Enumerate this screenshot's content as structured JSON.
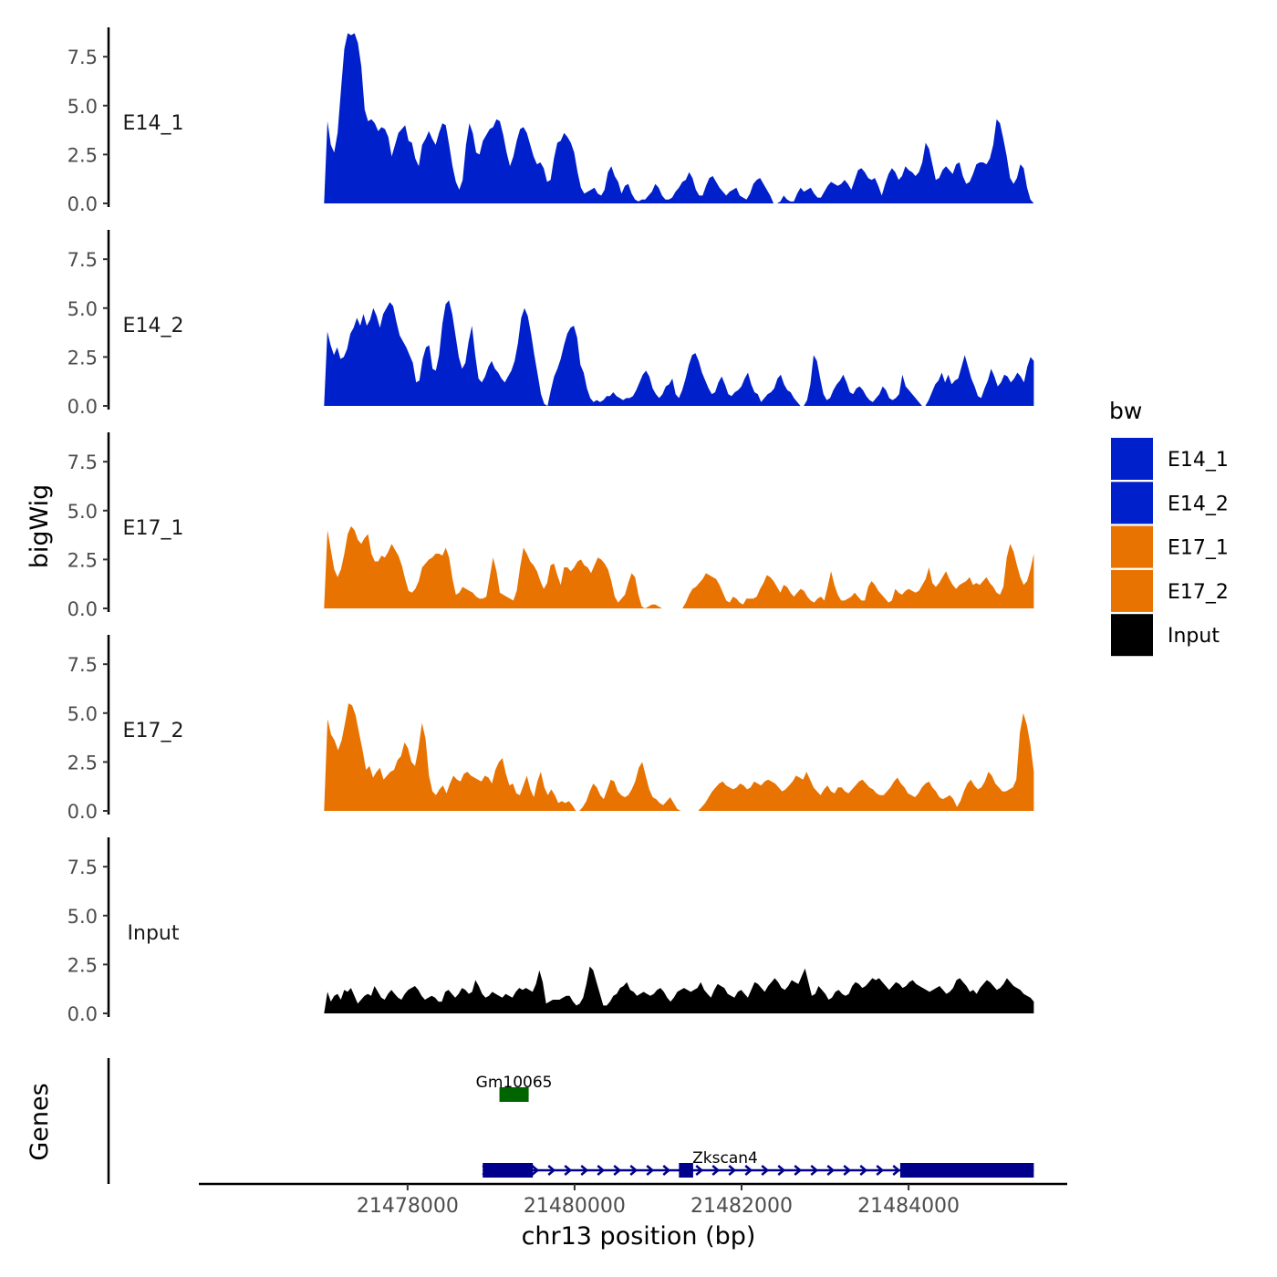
{
  "chart_data": {
    "type": "area",
    "y_axis_title": "bigWig",
    "genes_axis_title": "Genes",
    "x_axis_title": "chr13 position (bp)",
    "x_ticks": [
      21478000,
      21480000,
      21482000,
      21484000
    ],
    "x_range": [
      21475500,
      21485900
    ],
    "data_x_range": [
      21477000,
      21485500
    ],
    "y_range": [
      0,
      9
    ],
    "y_ticks": [
      "0.0",
      "2.5",
      "5.0",
      "7.5"
    ],
    "y_tick_values": [
      0,
      2.5,
      5,
      7.5
    ],
    "tracks": [
      {
        "name": "E14_1",
        "color": "#0020CC",
        "values": [
          0.0,
          4.2,
          3.0,
          2.6,
          3.6,
          5.8,
          7.9,
          8.7,
          8.6,
          8.7,
          8.2,
          7.0,
          4.8,
          4.2,
          4.3,
          4.1,
          3.7,
          3.9,
          3.8,
          3.4,
          2.4,
          3.0,
          3.6,
          3.8,
          4.0,
          3.2,
          3.1,
          2.3,
          1.9,
          3.0,
          3.3,
          3.7,
          3.3,
          3.0,
          3.6,
          4.1,
          4.0,
          3.0,
          1.9,
          1.1,
          0.7,
          1.2,
          3.0,
          4.1,
          3.6,
          2.6,
          2.5,
          3.2,
          3.5,
          3.8,
          3.9,
          4.3,
          4.2,
          3.5,
          2.6,
          1.9,
          2.4,
          3.2,
          3.8,
          3.9,
          3.6,
          3.0,
          2.4,
          2.0,
          2.1,
          1.8,
          1.1,
          1.2,
          2.3,
          3.1,
          3.2,
          3.6,
          3.4,
          3.1,
          2.6,
          1.6,
          0.8,
          0.5,
          0.6,
          0.7,
          0.8,
          0.5,
          0.4,
          0.7,
          1.6,
          1.9,
          1.4,
          1.1,
          0.5,
          0.9,
          1.0,
          0.5,
          0.2,
          0.1,
          0.2,
          0.2,
          0.4,
          0.6,
          1.0,
          0.8,
          0.4,
          0.2,
          0.2,
          0.3,
          0.6,
          0.8,
          1.1,
          1.2,
          1.6,
          1.3,
          0.7,
          0.4,
          0.4,
          0.9,
          1.3,
          1.4,
          1.1,
          0.8,
          0.6,
          0.4,
          0.6,
          0.7,
          0.8,
          0.4,
          0.3,
          0.2,
          0.5,
          1.0,
          1.2,
          1.3,
          1.0,
          0.7,
          0.4,
          0.0,
          0.0,
          0.1,
          0.4,
          0.2,
          0.1,
          0.1,
          0.5,
          0.8,
          0.6,
          0.7,
          0.8,
          0.5,
          0.3,
          0.3,
          0.6,
          0.9,
          1.1,
          1.0,
          0.9,
          1.0,
          1.2,
          1.0,
          0.7,
          1.2,
          1.7,
          1.8,
          1.6,
          1.3,
          1.2,
          1.3,
          0.9,
          0.4,
          1.0,
          1.5,
          1.8,
          1.6,
          1.2,
          1.4,
          1.9,
          1.7,
          1.6,
          1.4,
          1.6,
          2.1,
          3.1,
          2.8,
          2.0,
          1.2,
          1.3,
          1.7,
          1.9,
          1.7,
          1.5,
          2.0,
          2.1,
          1.4,
          1.0,
          1.1,
          1.5,
          2.0,
          2.1,
          2.1,
          2.0,
          2.3,
          3.0,
          4.3,
          4.1,
          3.3,
          2.4,
          1.3,
          1.0,
          1.3,
          2.0,
          1.8,
          0.8,
          0.2,
          0.0
        ]
      },
      {
        "name": "E14_2",
        "color": "#0020CC",
        "values": [
          0.0,
          3.8,
          3.1,
          2.6,
          3.0,
          2.4,
          2.5,
          2.9,
          3.7,
          4.0,
          4.5,
          4.1,
          4.7,
          4.1,
          4.4,
          5.0,
          4.6,
          4.0,
          4.7,
          5.0,
          5.3,
          5.1,
          4.3,
          3.6,
          3.3,
          3.0,
          2.6,
          2.2,
          1.2,
          1.3,
          2.4,
          3.0,
          3.1,
          1.9,
          1.8,
          2.6,
          4.2,
          5.2,
          5.4,
          4.7,
          3.6,
          2.5,
          1.9,
          2.2,
          3.3,
          4.1,
          2.6,
          1.4,
          1.2,
          1.5,
          2.0,
          2.3,
          1.9,
          1.7,
          1.4,
          1.2,
          1.5,
          1.8,
          2.3,
          3.2,
          4.5,
          5.0,
          4.6,
          3.7,
          2.6,
          1.6,
          0.6,
          0.1,
          0.0,
          0.8,
          1.5,
          1.9,
          2.4,
          3.1,
          3.7,
          4.0,
          4.1,
          3.5,
          2.1,
          1.7,
          0.9,
          0.4,
          0.2,
          0.3,
          0.2,
          0.3,
          0.5,
          0.5,
          0.7,
          0.5,
          0.4,
          0.3,
          0.4,
          0.4,
          0.5,
          0.8,
          1.2,
          1.6,
          1.8,
          1.5,
          0.9,
          0.6,
          0.4,
          0.6,
          1.0,
          1.1,
          1.4,
          0.6,
          0.4,
          0.8,
          1.4,
          2.1,
          2.6,
          2.7,
          2.3,
          1.7,
          1.3,
          0.9,
          0.6,
          0.7,
          1.2,
          1.5,
          1.1,
          0.6,
          0.5,
          0.7,
          0.8,
          1.0,
          1.4,
          1.7,
          1.1,
          0.7,
          0.6,
          0.2,
          0.4,
          0.6,
          0.7,
          0.9,
          1.4,
          1.6,
          1.1,
          0.8,
          0.7,
          0.4,
          0.2,
          0.0,
          0.0,
          0.3,
          1.1,
          2.6,
          2.3,
          1.4,
          0.6,
          0.3,
          0.4,
          0.8,
          1.1,
          1.3,
          1.6,
          1.2,
          0.7,
          0.6,
          0.9,
          1.0,
          0.8,
          0.5,
          0.3,
          0.2,
          0.4,
          0.6,
          1.0,
          0.8,
          0.4,
          0.3,
          0.4,
          0.6,
          1.6,
          1.0,
          0.8,
          0.6,
          0.4,
          0.2,
          0.0,
          0.0,
          0.3,
          0.7,
          1.1,
          1.3,
          1.7,
          1.2,
          1.6,
          1.1,
          1.3,
          1.4,
          2.0,
          2.6,
          2.0,
          1.4,
          1.0,
          0.5,
          0.4,
          0.9,
          1.3,
          1.9,
          1.5,
          1.0,
          1.2,
          1.6,
          1.5,
          1.2,
          1.4,
          1.7,
          1.5,
          1.2,
          2.0,
          2.5,
          2.3
        ]
      },
      {
        "name": "E17_1",
        "color": "#E87300",
        "values": [
          0.0,
          4.0,
          3.0,
          2.0,
          1.6,
          2.0,
          2.8,
          3.8,
          4.2,
          4.0,
          3.5,
          3.3,
          3.6,
          3.8,
          2.8,
          2.4,
          2.4,
          2.7,
          2.6,
          2.9,
          3.3,
          3.0,
          2.7,
          2.2,
          1.5,
          0.9,
          0.8,
          1.0,
          1.4,
          2.1,
          2.3,
          2.5,
          2.6,
          2.8,
          2.8,
          2.7,
          3.1,
          2.6,
          1.5,
          0.7,
          0.8,
          1.1,
          1.0,
          0.9,
          0.8,
          0.6,
          0.5,
          0.5,
          0.6,
          1.6,
          2.6,
          1.9,
          0.8,
          0.7,
          0.6,
          0.5,
          0.4,
          0.9,
          2.1,
          3.1,
          2.8,
          2.4,
          2.2,
          1.9,
          1.4,
          1.0,
          1.3,
          2.2,
          2.3,
          1.7,
          1.2,
          2.1,
          2.1,
          1.9,
          2.1,
          2.4,
          2.5,
          2.2,
          2.1,
          1.8,
          2.2,
          2.6,
          2.5,
          2.3,
          2.0,
          1.4,
          0.6,
          0.3,
          0.5,
          0.7,
          1.3,
          1.8,
          1.6,
          0.7,
          0.1,
          0.0,
          0.1,
          0.2,
          0.2,
          0.1,
          0.0,
          0.0,
          0.0,
          0.0,
          0.0,
          0.0,
          0.0,
          0.3,
          0.7,
          1.0,
          1.1,
          1.3,
          1.5,
          1.8,
          1.7,
          1.6,
          1.5,
          1.2,
          0.8,
          0.4,
          0.3,
          0.6,
          0.5,
          0.3,
          0.2,
          0.5,
          0.5,
          0.5,
          0.6,
          1.0,
          1.3,
          1.7,
          1.6,
          1.4,
          1.1,
          0.8,
          1.2,
          1.1,
          0.8,
          0.6,
          0.8,
          1.0,
          0.9,
          0.6,
          0.4,
          0.3,
          0.5,
          0.6,
          0.4,
          1.1,
          1.9,
          1.2,
          0.7,
          0.4,
          0.4,
          0.5,
          0.6,
          0.8,
          0.6,
          0.4,
          0.4,
          1.1,
          1.4,
          1.2,
          0.9,
          0.7,
          0.5,
          0.3,
          0.4,
          1.0,
          0.8,
          0.7,
          0.9,
          1.0,
          0.9,
          0.8,
          0.9,
          1.2,
          1.5,
          2.1,
          1.3,
          1.1,
          1.3,
          1.6,
          1.9,
          1.5,
          1.2,
          1.0,
          1.2,
          1.3,
          1.4,
          1.6,
          1.2,
          1.3,
          1.2,
          1.4,
          1.6,
          1.3,
          1.1,
          0.8,
          0.7,
          1.1,
          2.6,
          3.3,
          2.9,
          2.2,
          1.6,
          1.2,
          1.4,
          2.0,
          2.8
        ]
      },
      {
        "name": "E17_2",
        "color": "#E87300",
        "values": [
          0.0,
          4.7,
          3.9,
          3.6,
          3.1,
          3.6,
          4.5,
          5.5,
          5.4,
          4.9,
          4.0,
          3.1,
          2.1,
          2.3,
          1.7,
          2.0,
          2.2,
          1.6,
          1.8,
          2.0,
          2.1,
          2.6,
          2.8,
          3.5,
          3.2,
          2.5,
          2.3,
          3.2,
          4.5,
          3.7,
          1.8,
          1.0,
          0.8,
          1.1,
          1.3,
          0.9,
          1.4,
          1.8,
          1.6,
          1.5,
          1.9,
          2.0,
          1.8,
          1.7,
          1.6,
          1.5,
          1.8,
          1.7,
          1.4,
          2.1,
          2.5,
          2.7,
          1.9,
          1.3,
          1.4,
          0.9,
          0.8,
          1.3,
          1.8,
          1.1,
          0.7,
          1.5,
          2.0,
          1.2,
          0.8,
          1.1,
          0.8,
          0.4,
          0.5,
          0.4,
          0.5,
          0.3,
          0.0,
          0.0,
          0.2,
          0.5,
          1.0,
          1.4,
          1.2,
          0.8,
          0.6,
          1.1,
          1.6,
          1.5,
          1.0,
          0.8,
          0.7,
          0.8,
          1.1,
          1.5,
          2.2,
          2.5,
          1.8,
          1.1,
          0.7,
          0.6,
          0.4,
          0.3,
          0.5,
          0.7,
          0.4,
          0.1,
          0.0,
          0.0,
          0.0,
          0.0,
          0.0,
          0.0,
          0.2,
          0.4,
          0.7,
          1.0,
          1.2,
          1.4,
          1.5,
          1.3,
          1.2,
          1.1,
          1.2,
          1.4,
          1.3,
          1.1,
          1.2,
          1.5,
          1.4,
          1.3,
          1.5,
          1.6,
          1.5,
          1.4,
          1.2,
          1.0,
          1.1,
          1.3,
          1.5,
          1.8,
          1.7,
          1.6,
          2.0,
          1.6,
          1.2,
          1.0,
          0.8,
          1.1,
          1.3,
          1.0,
          0.9,
          1.2,
          1.2,
          1.0,
          0.9,
          1.1,
          1.3,
          1.5,
          1.6,
          1.4,
          1.2,
          1.1,
          0.9,
          0.8,
          0.8,
          1.0,
          1.2,
          1.5,
          1.7,
          1.4,
          1.2,
          0.9,
          0.8,
          0.7,
          0.9,
          1.2,
          1.4,
          1.5,
          1.2,
          1.0,
          0.7,
          0.6,
          0.7,
          0.8,
          0.6,
          0.2,
          0.5,
          1.0,
          1.4,
          1.6,
          1.3,
          1.1,
          1.2,
          1.5,
          2.0,
          1.8,
          1.4,
          1.2,
          1.0,
          1.0,
          1.1,
          1.2,
          1.6,
          4.0,
          5.0,
          4.4,
          3.4,
          2.0
        ]
      },
      {
        "name": "Input",
        "color": "#000000",
        "values": [
          0.0,
          1.1,
          0.6,
          0.9,
          1.0,
          0.7,
          1.2,
          1.1,
          1.3,
          0.9,
          0.5,
          0.7,
          0.9,
          1.0,
          0.9,
          1.4,
          1.1,
          0.8,
          0.7,
          1.0,
          1.2,
          1.0,
          0.8,
          0.7,
          1.0,
          1.2,
          1.3,
          1.4,
          1.2,
          0.9,
          0.7,
          0.8,
          0.9,
          0.8,
          0.6,
          0.6,
          1.1,
          1.2,
          1.0,
          0.8,
          1.0,
          1.3,
          1.2,
          1.0,
          1.1,
          1.7,
          1.4,
          1.0,
          0.8,
          0.9,
          1.1,
          1.0,
          0.9,
          0.8,
          1.0,
          0.9,
          0.8,
          1.1,
          1.3,
          1.2,
          1.3,
          1.2,
          1.1,
          1.5,
          2.2,
          1.6,
          0.5,
          0.6,
          0.7,
          0.7,
          0.7,
          0.8,
          0.9,
          0.9,
          0.6,
          0.4,
          0.5,
          0.8,
          1.5,
          2.4,
          2.2,
          1.6,
          1.0,
          0.4,
          0.4,
          0.6,
          0.9,
          1.0,
          1.3,
          1.4,
          1.6,
          1.2,
          1.1,
          0.9,
          1.0,
          1.1,
          1.0,
          0.9,
          1.0,
          1.2,
          1.3,
          1.1,
          0.8,
          0.6,
          0.8,
          1.1,
          1.2,
          1.3,
          1.2,
          1.1,
          1.2,
          1.3,
          1.6,
          1.2,
          1.0,
          0.8,
          1.2,
          1.5,
          1.4,
          1.3,
          1.0,
          0.9,
          0.8,
          1.1,
          1.2,
          1.0,
          0.8,
          1.2,
          1.6,
          1.5,
          1.3,
          1.1,
          1.4,
          1.6,
          1.8,
          1.6,
          1.3,
          1.2,
          1.4,
          1.7,
          1.6,
          1.5,
          1.9,
          2.3,
          1.6,
          0.9,
          1.0,
          1.4,
          1.2,
          1.0,
          0.7,
          0.8,
          1.1,
          1.2,
          1.0,
          0.9,
          1.0,
          1.4,
          1.6,
          1.5,
          1.3,
          1.4,
          1.6,
          1.8,
          1.7,
          1.8,
          1.6,
          1.4,
          1.2,
          1.4,
          1.6,
          1.5,
          1.3,
          1.4,
          1.6,
          1.7,
          1.5,
          1.4,
          1.3,
          1.2,
          1.1,
          1.2,
          1.3,
          1.4,
          1.2,
          1.0,
          1.1,
          1.3,
          1.7,
          1.8,
          1.6,
          1.4,
          1.1,
          1.2,
          1.0,
          1.3,
          1.5,
          1.7,
          1.6,
          1.4,
          1.2,
          1.3,
          1.5,
          1.8,
          1.6,
          1.4,
          1.3,
          1.2,
          1.0,
          0.9,
          0.8,
          0.6
        ]
      }
    ],
    "genes": [
      {
        "name": "Gm10065",
        "color": "#006400",
        "start": 21479100,
        "end": 21479450,
        "exons": [
          [
            21479100,
            21479450
          ]
        ],
        "strand": "-"
      },
      {
        "name": "Zkscan4",
        "color": "#00008B",
        "start": 21478900,
        "end": 21485500,
        "exons": [
          [
            21478900,
            21479500
          ],
          [
            21481250,
            21481420
          ],
          [
            21483900,
            21485500
          ]
        ],
        "strand": "+"
      }
    ],
    "legend": {
      "title": "bw",
      "position": "right",
      "entries": [
        {
          "label": "E14_1",
          "color": "#0020CC"
        },
        {
          "label": "E14_2",
          "color": "#0020CC"
        },
        {
          "label": "E17_1",
          "color": "#E87300"
        },
        {
          "label": "E17_2",
          "color": "#E87300"
        },
        {
          "label": "Input",
          "color": "#000000"
        }
      ]
    }
  }
}
